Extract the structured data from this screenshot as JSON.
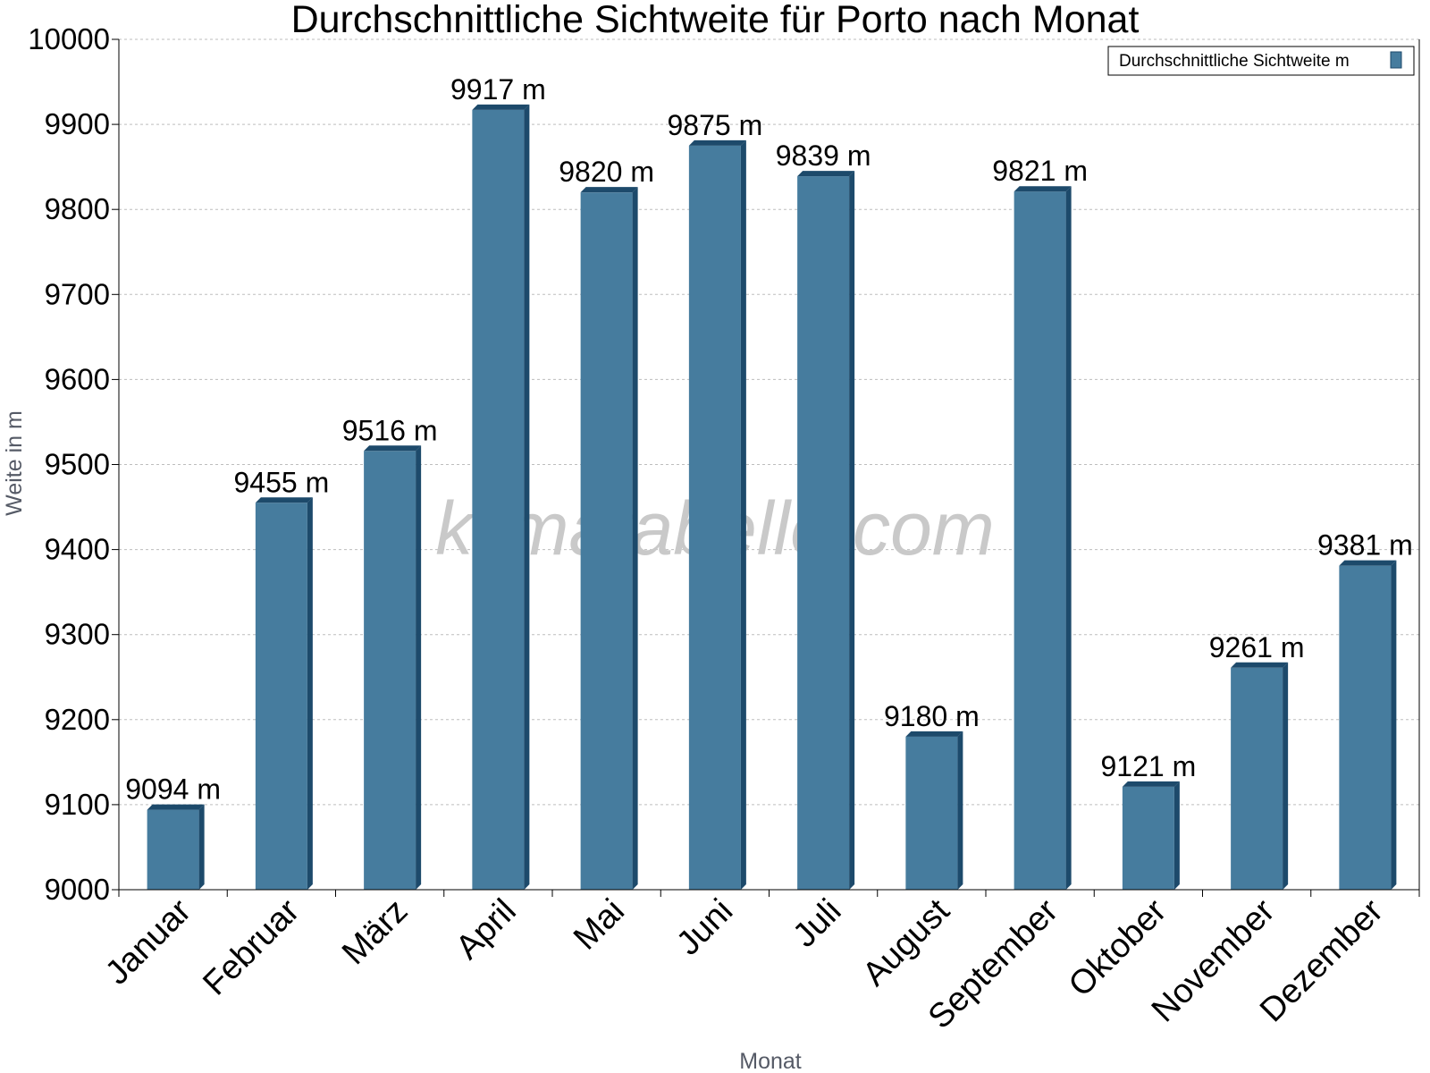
{
  "chart_data": {
    "type": "bar",
    "title": "Durchschnittliche Sichtweite für Porto nach Monat",
    "xlabel": "Monat",
    "ylabel": "Weite in m",
    "ylim": [
      9000,
      10000
    ],
    "yticks": [
      "9000",
      "9100",
      "9200",
      "9300",
      "9400",
      "9500",
      "9600",
      "9700",
      "9800",
      "9900",
      "10000"
    ],
    "categories": [
      "Januar",
      "Februar",
      "März",
      "April",
      "Mai",
      "Juni",
      "Juli",
      "August",
      "September",
      "Oktober",
      "November",
      "Dezember"
    ],
    "series": [
      {
        "name": "Durchschnittliche Sichtweite m",
        "values": [
          9094,
          9455,
          9516,
          9917,
          9820,
          9875,
          9839,
          9180,
          9821,
          9121,
          9261,
          9381
        ],
        "labels": [
          "9094 m",
          "9455 m",
          "9516 m",
          "9917 m",
          "9820 m",
          "9875 m",
          "9839 m",
          "9180 m",
          "9821 m",
          "9121 m",
          "9261 m",
          "9381 m"
        ],
        "color": "#467c9e",
        "edge_color": "#1d4a6b"
      }
    ],
    "grid": true,
    "legend": "top-right",
    "watermark": "klimatabelle.com"
  }
}
